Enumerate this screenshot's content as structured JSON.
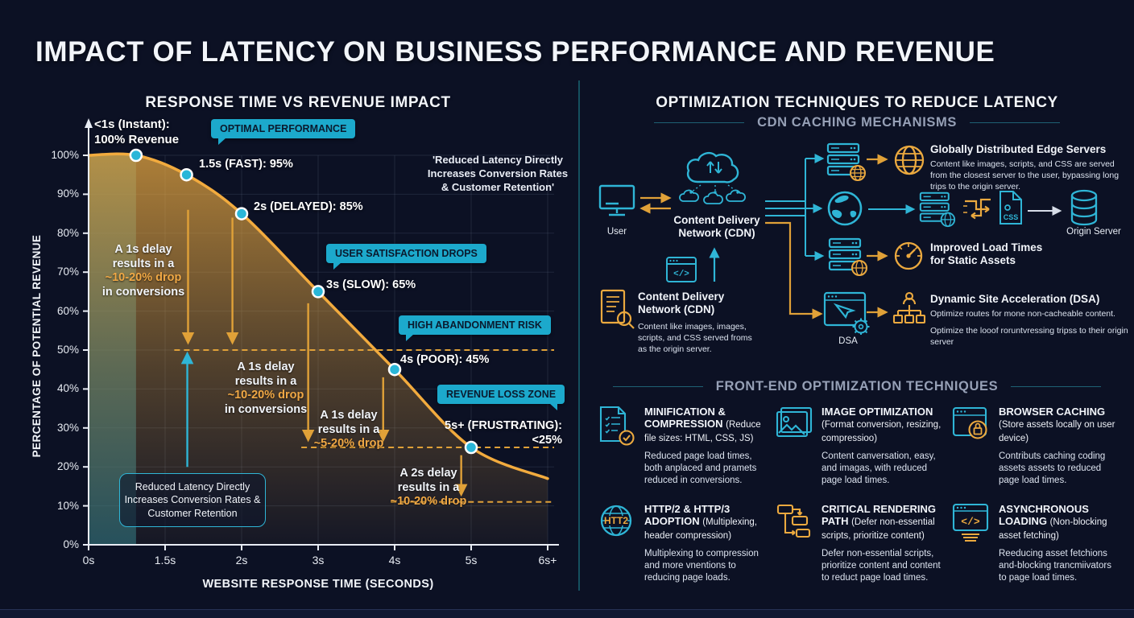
{
  "title": "IMPACT OF LATENCY ON BUSINESS PERFORMANCE AND REVENUE",
  "colors": {
    "background": "#0c1124",
    "accent_cyan": "#2fb5d6",
    "accent_orange": "#eba93f",
    "badge_bg": "#1ca9cc"
  },
  "left_panel": {
    "heading": "RESPONSE TIME VS REVENUE IMPACT",
    "quote": "'Reduced Latency Directly\nIncreases Conversion Rates\n& Customer Retention'",
    "caption_box": "Reduced Latency Directly\nIncreases Conversion Rates\n& Customer Retention",
    "badges": [
      {
        "label": "OPTIMAL PERFORMANCE"
      },
      {
        "label": "USER SATISFACTION DROPS"
      },
      {
        "label": "HIGH ABANDONMENT RISK"
      },
      {
        "label": "REVENUE LOSS ZONE"
      }
    ],
    "annotations": [
      {
        "l1": "A 1s delay",
        "l2": "results in a",
        "l3": "~10-20% drop",
        "l4": "in conversions"
      },
      {
        "l1": "A 1s delay",
        "l2": "results in a",
        "l3": "~10-20% drop",
        "l4": "in conversions"
      },
      {
        "l1": "A 1s delay",
        "l2": "results in a",
        "l3": "~5-20% drop"
      },
      {
        "l1": "A 2s delay",
        "l2": "results in a",
        "l3": "~10-20% drop"
      }
    ]
  },
  "chart_data": {
    "type": "area",
    "title": "RESPONSE TIME VS REVENUE IMPACT",
    "xlabel": "WEBSITE RESPONSE TIME (SECONDS)",
    "ylabel": "PERCENTAGE OF POTENTIAL REVENUE",
    "x_ticks": [
      "0s",
      "1.5s",
      "2s",
      "3s",
      "4s",
      "5s",
      "6s+"
    ],
    "y_ticks": [
      "100%",
      "90%",
      "80%",
      "70%",
      "60%",
      "50%",
      "40%",
      "30%",
      "20%",
      "10%",
      "0%"
    ],
    "ylim": [
      0,
      100
    ],
    "points": [
      {
        "label": "<1s (Instant):\n100% Revenue",
        "x": 0.62,
        "value": 100
      },
      {
        "label": "1.5s (FAST): 95%",
        "x": 1.28,
        "value": 95
      },
      {
        "label": "2s (DELAYED): 85%",
        "x": 2.0,
        "value": 85
      },
      {
        "label": "3s (SLOW): 65%",
        "x": 3.0,
        "value": 65
      },
      {
        "label": "4s (POOR): 45%",
        "x": 4.0,
        "value": 45
      },
      {
        "label": "5s+ (FRUSTRATING):\n<25%",
        "x": 5.0,
        "value": 25
      }
    ],
    "curve_start": {
      "x": 0,
      "value": 100
    },
    "curve_end": {
      "x": 6.0,
      "value": 17
    },
    "shaded_band_x": [
      0,
      0.62
    ],
    "dashed_levels": [
      {
        "value": 50,
        "from_x": 1.12
      },
      {
        "value": 25,
        "from_x": 2.78
      },
      {
        "value": 11,
        "from_x": 3.95
      }
    ],
    "drop_arrows": [
      {
        "x": 1.3,
        "from": 86,
        "to": 52
      },
      {
        "x": 1.88,
        "from": 84,
        "to": 52
      },
      {
        "x": 2.87,
        "from": 62,
        "to": 27
      },
      {
        "x": 3.85,
        "from": 43,
        "to": 27
      },
      {
        "x": 4.87,
        "from": 23,
        "to": 13
      }
    ],
    "up_arrow": {
      "x": 1.29,
      "from": 20,
      "to": 49
    }
  },
  "right_panel": {
    "heading": "OPTIMIZATION TECHNIQUES TO REDUCE LATENCY",
    "cdn_section": {
      "heading": "CDN CACHING MECHANISMS",
      "user_label": "User",
      "cdn_label": "Content Delivery\nNetwork (CDN)",
      "cdn_info_title": "Content Delivery\nNetwork (CDN)",
      "cdn_info_desc": "Content like images, images, scripts, and CSS served froms as the origin server.",
      "dsa_label": "DSA",
      "origin_server_label": "Origin Server",
      "rows": [
        {
          "title": "Globally Distributed Edge Servers",
          "desc": "Content like images, scripts, and CSS are served from the closest server to the user, bypassing long trips to the origin server."
        },
        {
          "title": "Improved Load Times\nfor Static Assets"
        },
        {
          "title": "Dynamic Site Acceleration (DSA)",
          "desc": "Optimize routes for mone non-cacheable content.",
          "desc2": "Optimize the looof roruntvressing tripss to their origin server"
        }
      ]
    },
    "frontend_section": {
      "heading": "FRONT-END OPTIMIZATION TECHNIQUES",
      "cards": [
        {
          "title": "MINIFICATION & COMPRESSION",
          "paren": "(Reduce file sizes: HTML, CSS, JS)",
          "desc": "Reduced page load times, both anplaced and pramets reduced in conversions.",
          "icon": "minify-doc-icon"
        },
        {
          "title": "IMAGE OPTIMIZATION",
          "paren": "(Format conversion, resizing, compressioo)",
          "desc": "Content canversation, easy, and imagas, with reduced page load times.",
          "icon": "image-icon"
        },
        {
          "title": "BROWSER CACHING",
          "paren": "(Store assets locally on user device)",
          "desc": "Contributs caching coding assets assets to reduced page load times.",
          "icon": "browser-lock-icon"
        },
        {
          "title": "HTTP/2 & HTTP/3 ADOPTION",
          "paren": "(Multiplexing, header compression)",
          "desc": "Multiplexing to compression and more vnentions to reducing page loads.",
          "icon": "http2-globe-icon"
        },
        {
          "title": "CRITICAL RENDERING PATH",
          "paren": "(Defer non-essential scripts, prioritize content)",
          "desc": "Defer non-essential scripts, prioritize content and content to reduct page load times.",
          "icon": "critical-path-icon"
        },
        {
          "title": "ASYNCHRONOUS LOADING",
          "paren": "(Non-blocking asset fetching)",
          "desc": "Reeducing asset fetchions and-blocking trancmiivators to page load times.",
          "icon": "async-code-icon"
        }
      ]
    }
  }
}
